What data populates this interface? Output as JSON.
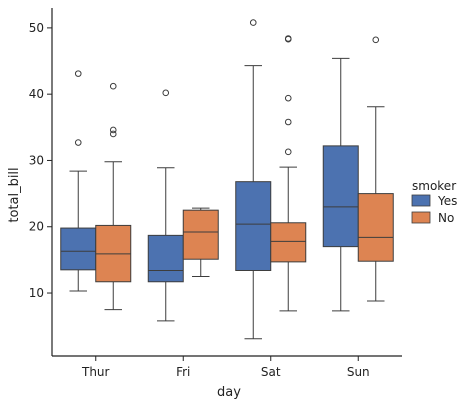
{
  "chart_data": {
    "type": "box",
    "xlabel": "day",
    "ylabel": "total_bill",
    "ylim": [
      0.5,
      53
    ],
    "yticks": [
      10,
      20,
      30,
      40,
      50
    ],
    "categories": [
      "Thur",
      "Fri",
      "Sat",
      "Sun"
    ],
    "legend": {
      "title": "smoker",
      "position": "right"
    },
    "series": [
      {
        "name": "Yes",
        "color": "#4c72b0",
        "boxes": [
          {
            "category": "Thur",
            "whisker_low": 10.3,
            "q1": 13.5,
            "median": 16.3,
            "q3": 19.8,
            "whisker_high": 28.4,
            "outliers": [
              32.7,
              43.1
            ]
          },
          {
            "category": "Fri",
            "whisker_low": 5.8,
            "q1": 11.7,
            "median": 13.4,
            "q3": 18.7,
            "whisker_high": 28.9,
            "outliers": [
              40.2
            ]
          },
          {
            "category": "Sat",
            "whisker_low": 3.1,
            "q1": 13.4,
            "median": 20.4,
            "q3": 26.8,
            "whisker_high": 44.3,
            "outliers": [
              50.8
            ]
          },
          {
            "category": "Sun",
            "whisker_low": 7.3,
            "q1": 17.0,
            "median": 23.0,
            "q3": 32.2,
            "whisker_high": 45.4,
            "outliers": []
          }
        ]
      },
      {
        "name": "No",
        "color": "#dd8452",
        "boxes": [
          {
            "category": "Thur",
            "whisker_low": 7.5,
            "q1": 11.7,
            "median": 15.9,
            "q3": 20.2,
            "whisker_high": 29.8,
            "outliers": [
              34.0,
              34.6,
              41.2
            ]
          },
          {
            "category": "Fri",
            "whisker_low": 12.5,
            "q1": 15.1,
            "median": 19.2,
            "q3": 22.5,
            "whisker_high": 22.8,
            "outliers": []
          },
          {
            "category": "Sat",
            "whisker_low": 7.3,
            "q1": 14.7,
            "median": 17.8,
            "q3": 20.6,
            "whisker_high": 29.0,
            "outliers": [
              31.3,
              35.8,
              39.4,
              48.3,
              48.4
            ]
          },
          {
            "category": "Sun",
            "whisker_low": 8.8,
            "q1": 14.8,
            "median": 18.4,
            "q3": 25.0,
            "whisker_high": 38.1,
            "outliers": [
              48.2
            ]
          }
        ]
      }
    ]
  }
}
